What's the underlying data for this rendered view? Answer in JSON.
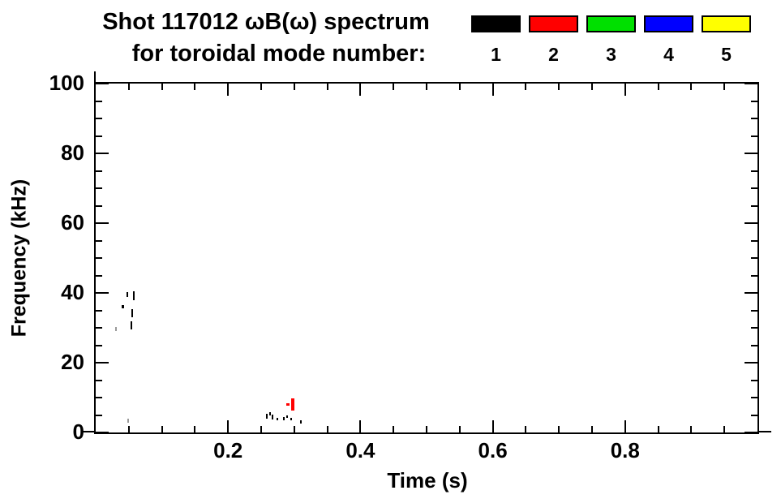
{
  "window": {
    "background": "#ffffff"
  },
  "chart_data": {
    "type": "scatter",
    "title_line1": "Shot 117012 ωB(ω) spectrum",
    "title_line2": "for toroidal mode number:",
    "xlabel": "Time (s)",
    "ylabel": "Frequency (kHz)",
    "xlim": [
      0.0,
      1.0
    ],
    "ylim": [
      0,
      100
    ],
    "grid": false,
    "x_major_ticks": [
      {
        "value": 0.2,
        "label": "0.2"
      },
      {
        "value": 0.4,
        "label": "0.4"
      },
      {
        "value": 0.6,
        "label": "0.6"
      },
      {
        "value": 0.8,
        "label": "0.8"
      }
    ],
    "x_minor_ticks": [
      0.05,
      0.1,
      0.15,
      0.25,
      0.3,
      0.35,
      0.45,
      0.5,
      0.55,
      0.65,
      0.7,
      0.75,
      0.85,
      0.9,
      0.95
    ],
    "y_major_ticks": [
      {
        "value": 0,
        "label": "0"
      },
      {
        "value": 20,
        "label": "20"
      },
      {
        "value": 40,
        "label": "40"
      },
      {
        "value": 60,
        "label": "60"
      },
      {
        "value": 80,
        "label": "80"
      },
      {
        "value": 100,
        "label": "100"
      }
    ],
    "y_minor_ticks": [
      5,
      10,
      15,
      25,
      30,
      35,
      45,
      50,
      55,
      65,
      70,
      75,
      85,
      90,
      95
    ],
    "legend": {
      "position": "top-right",
      "entries": [
        {
          "label": "1",
          "color": "#000000"
        },
        {
          "label": "2",
          "color": "#ff0000"
        },
        {
          "label": "3",
          "color": "#00e000"
        },
        {
          "label": "4",
          "color": "#0000ff"
        },
        {
          "label": "5",
          "color": "#ffff00"
        }
      ]
    },
    "series": [
      {
        "mode": "1",
        "name": "toroidal mode n=1",
        "color": "#000000",
        "marks": [
          {
            "t": 0.048,
            "f0": 38.8,
            "f1": 40.2
          },
          {
            "t": 0.057,
            "f0": 37.8,
            "f1": 40.4
          },
          {
            "t": 0.041,
            "f0": 35.5,
            "f1": 36.4,
            "w": 3
          },
          {
            "t": 0.055,
            "f0": 33.0,
            "f1": 35.3
          },
          {
            "t": 0.054,
            "f0": 29.5,
            "f1": 31.8
          },
          {
            "t": 0.031,
            "f0": 29.0,
            "f1": 30.2,
            "c": "#999999"
          },
          {
            "t": 0.049,
            "f0": 2.8,
            "f1": 3.9,
            "c": "#999999"
          },
          {
            "t": 0.259,
            "f0": 3.9,
            "f1": 5.3
          },
          {
            "t": 0.263,
            "f0": 4.9,
            "f1": 5.8
          },
          {
            "t": 0.267,
            "f0": 3.7,
            "f1": 5.1
          },
          {
            "t": 0.274,
            "f0": 3.5,
            "f1": 4.2
          },
          {
            "t": 0.284,
            "f0": 3.5,
            "f1": 4.4
          },
          {
            "t": 0.289,
            "f0": 4.2,
            "f1": 4.9
          },
          {
            "t": 0.295,
            "f0": 3.5,
            "f1": 4.2
          },
          {
            "t": 0.31,
            "f0": 2.6,
            "f1": 3.5
          }
        ]
      },
      {
        "mode": "2",
        "name": "toroidal mode n=2",
        "color": "#ff0000",
        "marks": [
          {
            "t": 0.2887,
            "f0": 7.7,
            "f1": 8.4
          },
          {
            "t": 0.2911,
            "f0": 7.7,
            "f1": 8.4
          },
          {
            "t": 0.2984,
            "f0": 6.3,
            "f1": 9.7,
            "w": 4
          }
        ]
      },
      {
        "mode": "3",
        "name": "toroidal mode n=3",
        "color": "#00e000",
        "marks": []
      },
      {
        "mode": "4",
        "name": "toroidal mode n=4",
        "color": "#0000ff",
        "marks": []
      },
      {
        "mode": "5",
        "name": "toroidal mode n=5",
        "color": "#ffff00",
        "marks": []
      }
    ]
  }
}
